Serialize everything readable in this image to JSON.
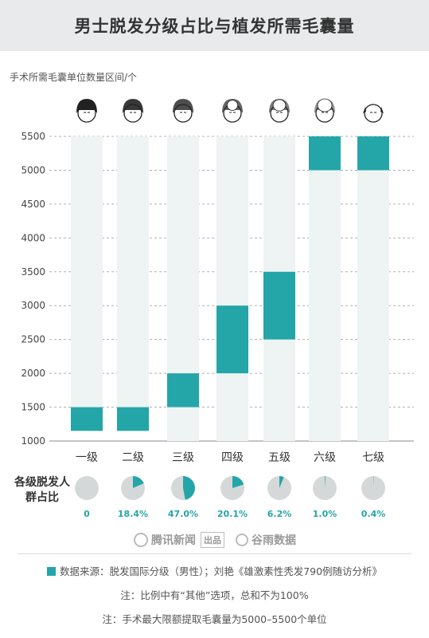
{
  "title": "男士脱发分级占比与植发所需毛囊量",
  "chart_data": {
    "type": "bar",
    "subtype": "floating-range",
    "ylabel": "手术所需毛囊单位数量区间/个",
    "ylim": [
      1000,
      5500
    ],
    "yticks": [
      1000,
      1500,
      2000,
      2500,
      3000,
      3500,
      4000,
      4500,
      5000,
      5500
    ],
    "grid": "dashed horizontal",
    "categories": [
      "一级",
      "二级",
      "三级",
      "四级",
      "五级",
      "六级",
      "七级"
    ],
    "ranges": [
      [
        1150,
        1500
      ],
      [
        1150,
        1500
      ],
      [
        1500,
        2000
      ],
      [
        2000,
        3000
      ],
      [
        2500,
        3500
      ],
      [
        5000,
        5500
      ],
      [
        5000,
        5500
      ]
    ],
    "background_ranges": [
      [
        1150,
        5500
      ],
      [
        1150,
        5500
      ],
      [
        1000,
        5500
      ],
      [
        1000,
        5500
      ],
      [
        1000,
        5500
      ],
      [
        1000,
        5500
      ],
      [
        1000,
        5500
      ]
    ],
    "share_label": "各级脱发人群占比",
    "shares": [
      0,
      18.4,
      47.0,
      20.1,
      6.2,
      1.0,
      0.4
    ],
    "share_labels": [
      "0",
      "18.4%",
      "47.0%",
      "20.1%",
      "6.2%",
      "1.0%",
      "0.4%"
    ]
  },
  "colors": {
    "range": "#24a6a8",
    "background_bar": "#eef4f4",
    "pie_base": "#d5d8d8",
    "grid": "#b0b0b0"
  },
  "brands": {
    "left": "腾讯新闻",
    "left_tag": "出品",
    "right": "谷雨数据"
  },
  "notes": {
    "source": "数据来源：脱发国际分级（男性）；刘艳《雄激素性秃发790例随访分析》",
    "note1": "注：比例中有“其他”选项，总和不为100%",
    "note2": "注：手术最大限额提取毛囊量为5000–5500个单位"
  }
}
